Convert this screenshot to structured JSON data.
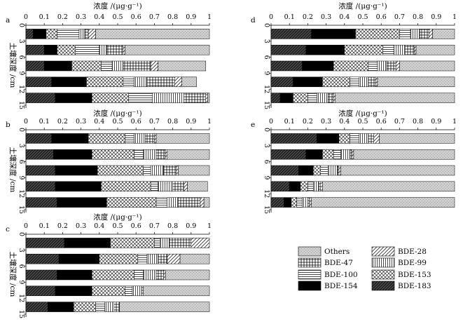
{
  "figure": {
    "legend_entries": [
      "Others",
      "BDE-28",
      "BDE-47",
      "BDE-99",
      "BDE-100",
      "BDE-153",
      "BDE-154",
      "BDE-183"
    ],
    "colors": {
      "others": "#bdbdbd",
      "dark": "#000000",
      "hatch": "#000000",
      "bg": "#ffffff"
    }
  },
  "chart_data": [
    {
      "type": "bar",
      "label": "a",
      "title": "浓度 /(μg·g⁻¹)",
      "ylabel": "土壤深度 /cm",
      "xlim": [
        0,
        1.0
      ],
      "x_ticks": [
        0,
        0.1,
        0.2,
        0.3,
        0.4,
        0.5,
        0.6,
        0.7,
        0.8,
        0.9,
        1.0
      ],
      "y_ticks": [
        0,
        3,
        6,
        9,
        12,
        15
      ],
      "categories": [
        "0-3",
        "3-6",
        "6-9",
        "9-12",
        "12-15"
      ],
      "stack_order": [
        "BDE-183",
        "BDE-154",
        "BDE-153",
        "BDE-100",
        "BDE-99",
        "BDE-47",
        "BDE-28",
        "Others"
      ],
      "series": [
        {
          "name": "BDE-183",
          "values": [
            0.04,
            0.1,
            0.1,
            0.14,
            0.16
          ]
        },
        {
          "name": "BDE-154",
          "values": [
            0.07,
            0.07,
            0.15,
            0.19,
            0.2
          ]
        },
        {
          "name": "BDE-153",
          "values": [
            0.06,
            0.1,
            0.16,
            0.2,
            0.2
          ]
        },
        {
          "name": "BDE-100",
          "values": [
            0.12,
            0.13,
            0.06,
            0.06,
            0.13
          ]
        },
        {
          "name": "BDE-99",
          "values": [
            0.03,
            0.04,
            0.06,
            0.07,
            0.17
          ]
        },
        {
          "name": "BDE-47",
          "values": [
            0.02,
            0.09,
            0.15,
            0.15,
            0.12
          ]
        },
        {
          "name": "BDE-28",
          "values": [
            0.04,
            0.01,
            0.04,
            0.04,
            0.01
          ]
        },
        {
          "name": "Others",
          "values": [
            0.62,
            0.46,
            0.26,
            0.08,
            0.01
          ]
        }
      ]
    },
    {
      "type": "bar",
      "label": "b",
      "title": "浓度 /(μg·g⁻¹)",
      "ylabel": "土壤深度 /cm",
      "xlim": [
        0,
        1.0
      ],
      "x_ticks": [
        0,
        0.1,
        0.2,
        0.3,
        0.4,
        0.5,
        0.6,
        0.7,
        0.8,
        0.9,
        1.0
      ],
      "y_ticks": [
        0,
        3,
        6,
        9,
        12,
        15
      ],
      "categories": [
        "0-3",
        "3-6",
        "6-9",
        "9-12",
        "12-15"
      ],
      "stack_order": [
        "BDE-183",
        "BDE-154",
        "BDE-153",
        "BDE-100",
        "BDE-99",
        "BDE-47",
        "BDE-28",
        "Others"
      ],
      "series": [
        {
          "name": "BDE-183",
          "values": [
            0.14,
            0.15,
            0.16,
            0.16,
            0.17
          ]
        },
        {
          "name": "BDE-154",
          "values": [
            0.2,
            0.21,
            0.23,
            0.25,
            0.27
          ]
        },
        {
          "name": "BDE-153",
          "values": [
            0.2,
            0.23,
            0.25,
            0.27,
            0.27
          ]
        },
        {
          "name": "BDE-100",
          "values": [
            0.05,
            0.05,
            0.04,
            0.04,
            0.06
          ]
        },
        {
          "name": "BDE-99",
          "values": [
            0.06,
            0.07,
            0.07,
            0.08,
            0.06
          ]
        },
        {
          "name": "BDE-47",
          "values": [
            0.05,
            0.05,
            0.07,
            0.06,
            0.12
          ]
        },
        {
          "name": "BDE-28",
          "values": [
            0.01,
            0.01,
            0.01,
            0.02,
            0.02
          ]
        },
        {
          "name": "Others",
          "values": [
            0.29,
            0.23,
            0.17,
            0.11,
            0.03
          ]
        }
      ]
    },
    {
      "type": "bar",
      "label": "c",
      "title": "浓度 /(μg·g⁻¹)",
      "ylabel": "土壤深度 /cm",
      "xlim": [
        0,
        1.0
      ],
      "x_ticks": [
        0,
        0.1,
        0.2,
        0.3,
        0.4,
        0.5,
        0.6,
        0.7,
        0.8,
        0.9,
        1.0
      ],
      "y_ticks": [
        0,
        3,
        6,
        9,
        12,
        15
      ],
      "categories": [
        "0-3",
        "3-6",
        "6-9",
        "9-12",
        "12-15"
      ],
      "stack_order": [
        "BDE-183",
        "BDE-154",
        "BDE-153",
        "BDE-100",
        "BDE-99",
        "BDE-47",
        "BDE-28",
        "Others"
      ],
      "series": [
        {
          "name": "BDE-183",
          "values": [
            0.21,
            0.18,
            0.17,
            0.16,
            0.12
          ]
        },
        {
          "name": "BDE-154",
          "values": [
            0.25,
            0.22,
            0.19,
            0.2,
            0.14
          ]
        },
        {
          "name": "BDE-153",
          "values": [
            0.24,
            0.21,
            0.23,
            0.18,
            0.12
          ]
        },
        {
          "name": "BDE-100",
          "values": [
            0.03,
            0.05,
            0.05,
            0.04,
            0.05
          ]
        },
        {
          "name": "BDE-99",
          "values": [
            0.05,
            0.06,
            0.07,
            0.05,
            0.05
          ]
        },
        {
          "name": "BDE-47",
          "values": [
            0.12,
            0.05,
            0.04,
            0.01,
            0.03
          ]
        },
        {
          "name": "BDE-28",
          "values": [
            0.1,
            0.07,
            0.01,
            0.0,
            0.0
          ]
        },
        {
          "name": "Others",
          "values": [
            0.0,
            0.16,
            0.24,
            0.36,
            0.49
          ]
        }
      ]
    },
    {
      "type": "bar",
      "label": "d",
      "title": "浓度 /(μg·g⁻¹)",
      "ylabel": "",
      "xlim": [
        0,
        1.0
      ],
      "x_ticks": [
        0,
        0.1,
        0.2,
        0.3,
        0.4,
        0.5,
        0.6,
        0.7,
        0.8,
        0.9,
        1.0
      ],
      "y_ticks": [
        0,
        3,
        6,
        9,
        12,
        15
      ],
      "categories": [
        "0-3",
        "3-6",
        "6-9",
        "9-12",
        "12-15"
      ],
      "stack_order": [
        "BDE-183",
        "BDE-154",
        "BDE-153",
        "BDE-100",
        "BDE-99",
        "BDE-47",
        "BDE-28",
        "Others"
      ],
      "series": [
        {
          "name": "BDE-183",
          "values": [
            0.22,
            0.19,
            0.17,
            0.12,
            0.05
          ]
        },
        {
          "name": "BDE-154",
          "values": [
            0.24,
            0.21,
            0.17,
            0.16,
            0.07
          ]
        },
        {
          "name": "BDE-153",
          "values": [
            0.24,
            0.21,
            0.19,
            0.15,
            0.08
          ]
        },
        {
          "name": "BDE-100",
          "values": [
            0.06,
            0.06,
            0.05,
            0.05,
            0.05
          ]
        },
        {
          "name": "BDE-99",
          "values": [
            0.05,
            0.06,
            0.05,
            0.05,
            0.06
          ]
        },
        {
          "name": "BDE-47",
          "values": [
            0.05,
            0.05,
            0.05,
            0.04,
            0.03
          ]
        },
        {
          "name": "BDE-28",
          "values": [
            0.02,
            0.01,
            0.02,
            0.01,
            0.01
          ]
        },
        {
          "name": "Others",
          "values": [
            0.12,
            0.21,
            0.3,
            0.42,
            0.65
          ]
        }
      ]
    },
    {
      "type": "bar",
      "label": "e",
      "title": "浓度 /(μg·g⁻¹)",
      "ylabel": "",
      "xlim": [
        0,
        1.0
      ],
      "x_ticks": [
        0,
        0.1,
        0.2,
        0.3,
        0.4,
        0.5,
        0.6,
        0.7,
        0.8,
        0.9,
        1.0
      ],
      "y_ticks": [
        0,
        3,
        6,
        9,
        12,
        15
      ],
      "categories": [
        "0-3",
        "3-6",
        "6-9",
        "9-12",
        "12-15"
      ],
      "stack_order": [
        "BDE-183",
        "BDE-154",
        "BDE-153",
        "BDE-100",
        "BDE-99",
        "BDE-47",
        "BDE-28",
        "Others"
      ],
      "series": [
        {
          "name": "BDE-183",
          "values": [
            0.25,
            0.19,
            0.15,
            0.1,
            0.07
          ]
        },
        {
          "name": "BDE-154",
          "values": [
            0.12,
            0.09,
            0.08,
            0.06,
            0.04
          ]
        },
        {
          "name": "BDE-153",
          "values": [
            0.06,
            0.06,
            0.04,
            0.04,
            0.03
          ]
        },
        {
          "name": "BDE-100",
          "values": [
            0.05,
            0.04,
            0.04,
            0.03,
            0.03
          ]
        },
        {
          "name": "BDE-99",
          "values": [
            0.05,
            0.05,
            0.05,
            0.03,
            0.03
          ]
        },
        {
          "name": "BDE-47",
          "values": [
            0.03,
            0.01,
            0.01,
            0.01,
            0.01
          ]
        },
        {
          "name": "BDE-28",
          "values": [
            0.03,
            0.01,
            0.01,
            0.01,
            0.01
          ]
        },
        {
          "name": "Others",
          "values": [
            0.41,
            0.55,
            0.62,
            0.72,
            0.78
          ]
        }
      ]
    }
  ]
}
